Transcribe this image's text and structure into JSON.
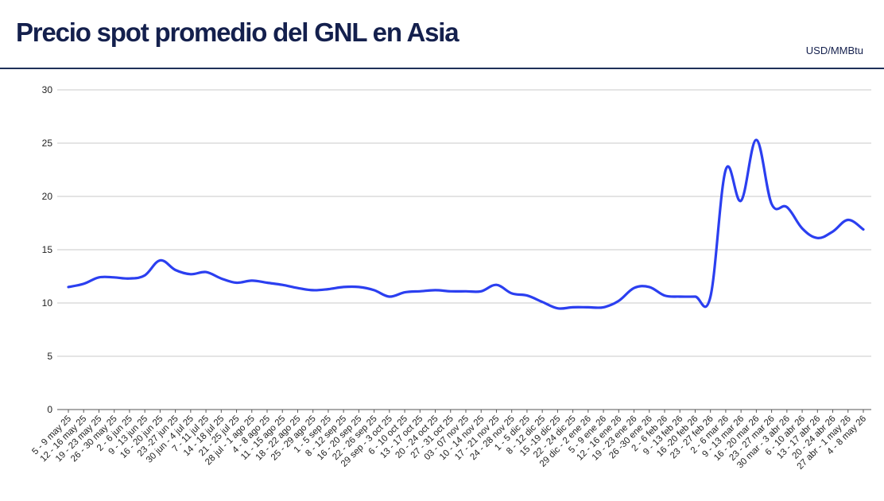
{
  "header": {
    "title": "Precio spot promedio del GNL en Asia",
    "unit": "USD/MMBtu"
  },
  "colors": {
    "title": "#14204d",
    "rule": "#1e3159",
    "line": "#2b3ff0",
    "grid": "#c8c8c8"
  },
  "chart_data": {
    "type": "line",
    "title": "Precio spot promedio del GNL en Asia",
    "xlabel": "",
    "ylabel": "USD/MMBtu",
    "ylim": [
      0,
      30
    ],
    "yticks": [
      "0",
      "5",
      "10",
      "15",
      "20",
      "25",
      "30"
    ],
    "grid": true,
    "legend": "none",
    "categories": [
      "5 - 9 may 25",
      "12 - 16 may 25",
      "19 - 23 may 25",
      "26 - 30 may 25",
      "2 - 6 jun 25",
      "9 - 13 jun 25",
      "16 - 20 jun 25",
      "23 -27 jun 25",
      "30 jun - 4 jul 25",
      "7 - 11 jul 25",
      "14 - 18 jul 25",
      "21 - 25 jul 25",
      "28 jul - 1 ago 25",
      "4 - 8 ago 25",
      "11 - 15 ago 25",
      "18 - 22 ago 25",
      "25 - 29 ago 25",
      "1 - 5 sep 25",
      "8 - 12 sep 25",
      "16 - 20 sep 25",
      "22 - 26 sep 25",
      "29 sep - 3 oct 25",
      "6 - 10 oct 25",
      "13 - 17 oct 25",
      "20 - 24 oct 25",
      "27 - 31 oct 25",
      "03 - 07 nov 25",
      "10 - 14 nov 25",
      "17 - 21 nov 25",
      "24 - 28 nov 25",
      "1 - 5 dic 25",
      "8 - 12 dic 25",
      "15 -19 dic 25",
      "22 - 24 dic 25",
      "29 dic - 2 ene 26",
      "5 - 9 ene 26",
      "12 - 16 ene 26",
      "19 - 23 ene 26",
      "26 -30 ene 26",
      "2 - 6 feb 26",
      "9 - 13 feb 26",
      "16 -20 feb 26",
      "23 - 27 feb 26",
      "2 - 6 mar 26",
      "9 - 13 mar 26",
      "16 - 20 mar 26",
      "23 - 27 mar 26",
      "30 mar - 3 abr 26",
      "6 - 10 abr 26",
      "13 - 17 abr 26",
      "20 - 24 abr 26",
      "27 abr - 1 may 26",
      "4 - 8 may 26"
    ],
    "series": [
      {
        "values": [
          11.5,
          11.8,
          12.4,
          12.4,
          12.3,
          12.6,
          14.0,
          13.1,
          12.7,
          12.9,
          12.3,
          11.9,
          12.1,
          11.9,
          11.7,
          11.4,
          11.2,
          11.3,
          11.5,
          11.5,
          11.2,
          10.6,
          11.0,
          11.1,
          11.2,
          11.1,
          11.1,
          11.1,
          11.7,
          10.9,
          10.7,
          10.1,
          9.5,
          9.6,
          9.6,
          9.6,
          10.2,
          11.4,
          11.5,
          10.7,
          10.6,
          10.6,
          10.6,
          22.5,
          19.6,
          25.3,
          19.3,
          19.0,
          17.0,
          16.1,
          16.7,
          17.8,
          16.9
        ]
      }
    ]
  }
}
